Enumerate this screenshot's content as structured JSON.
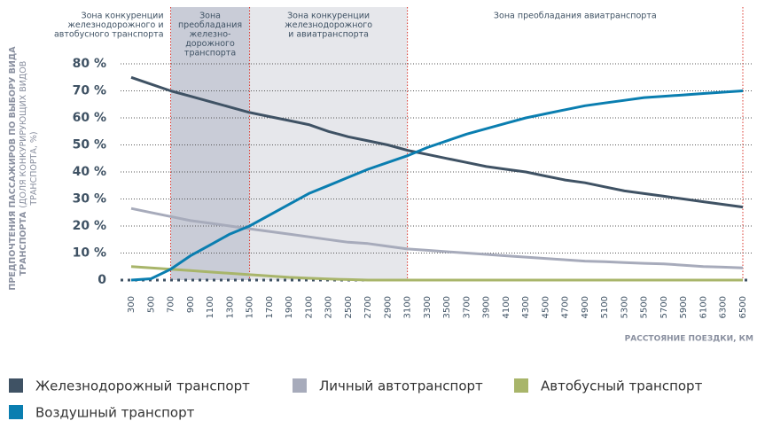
{
  "chart_data": {
    "type": "line",
    "ylabel_lines": [
      "ПРЕДПОЧТЕНИЯ ПАССАЖИРОВ ПО ВЫБОРУ ВИДА",
      "ТРАНСПОРТА",
      "(ДОЛЯ КОНКУРИРУЮЩИХ ВИДОВ",
      "ТРАНСПОРТА, %)"
    ],
    "xlabel": "РАССТОЯНИЕ ПОЕЗДКИ, КМ",
    "x": [
      300,
      500,
      700,
      900,
      1100,
      1300,
      1500,
      1700,
      1900,
      2100,
      2300,
      2500,
      2700,
      2900,
      3100,
      3300,
      3500,
      3700,
      3900,
      4100,
      4300,
      4500,
      4700,
      4900,
      5100,
      5300,
      5500,
      5700,
      5900,
      6100,
      6300,
      6500
    ],
    "xlim": [
      300,
      6500
    ],
    "ylim": [
      0,
      80
    ],
    "yticks": [
      0,
      {
        "value": 10,
        "label": "10 %"
      },
      {
        "value": 20,
        "label": "20 %"
      },
      {
        "value": 30,
        "label": "30 %"
      },
      {
        "value": 40,
        "label": "40 %"
      },
      {
        "value": 50,
        "label": "50 %"
      },
      {
        "value": 60,
        "label": "60 %"
      },
      {
        "value": 70,
        "label": "70 %"
      },
      {
        "value": 80,
        "label": "80 %"
      }
    ],
    "grid": true,
    "zones": [
      {
        "from": 300,
        "to": 700,
        "color": "#ffffff",
        "label": [
          "Зона конкуренции",
          "железнодорожного и",
          "автобусного транспорта"
        ]
      },
      {
        "from": 700,
        "to": 1500,
        "color": "#c9ccd7",
        "label": [
          "Зона",
          "преобладания",
          "железно-",
          "дорожного",
          "транспорта"
        ]
      },
      {
        "from": 1500,
        "to": 3100,
        "color": "#e6e7eb",
        "label": [
          "Зона конкуренции",
          "железнодорожного",
          "и авиатранспорта"
        ]
      },
      {
        "from": 3100,
        "to": 6500,
        "color": "#ffffff",
        "label": [
          "Зона преобладания авиатранспорта"
        ]
      }
    ],
    "series": [
      {
        "name": "Железнодорожный транспорт",
        "color": "#3f5264",
        "values": [
          75,
          72.5,
          70,
          68,
          66,
          64,
          62,
          60.5,
          59,
          57.5,
          55,
          53,
          51.5,
          50,
          48,
          46.5,
          45,
          43.5,
          42,
          41,
          40,
          38.5,
          37,
          36,
          34.5,
          33,
          32,
          31,
          30,
          29,
          28,
          27
        ]
      },
      {
        "name": "Личный автотранспорт",
        "color": "#a7abbb",
        "values": [
          26.5,
          25,
          23.5,
          22,
          21,
          20,
          19,
          18,
          17,
          16,
          15,
          14,
          13.5,
          12.5,
          11.5,
          11,
          10.5,
          10,
          9.5,
          9,
          8.5,
          8,
          7.5,
          7,
          6.8,
          6.5,
          6.2,
          6,
          5.5,
          5,
          4.8,
          4.5
        ]
      },
      {
        "name": "Автобусный транспорт",
        "color": "#a8b56a",
        "values": [
          5,
          4.5,
          4,
          3.5,
          3,
          2.5,
          2,
          1.5,
          1,
          0.7,
          0.4,
          0.2,
          0,
          0,
          0,
          0,
          0,
          0,
          0,
          0,
          0,
          0,
          0,
          0,
          0,
          0,
          0,
          0,
          0,
          0,
          0,
          0
        ]
      },
      {
        "name": "Воздушный транспорт",
        "color": "#0a7eb0",
        "values": [
          0,
          0.5,
          4,
          9,
          13,
          17,
          20,
          24,
          28,
          32,
          35,
          38,
          41,
          43.5,
          46,
          49,
          51.5,
          54,
          56,
          58,
          60,
          61.5,
          63,
          64.5,
          65.5,
          66.5,
          67.5,
          68,
          68.5,
          69,
          69.5,
          70
        ]
      }
    ]
  }
}
